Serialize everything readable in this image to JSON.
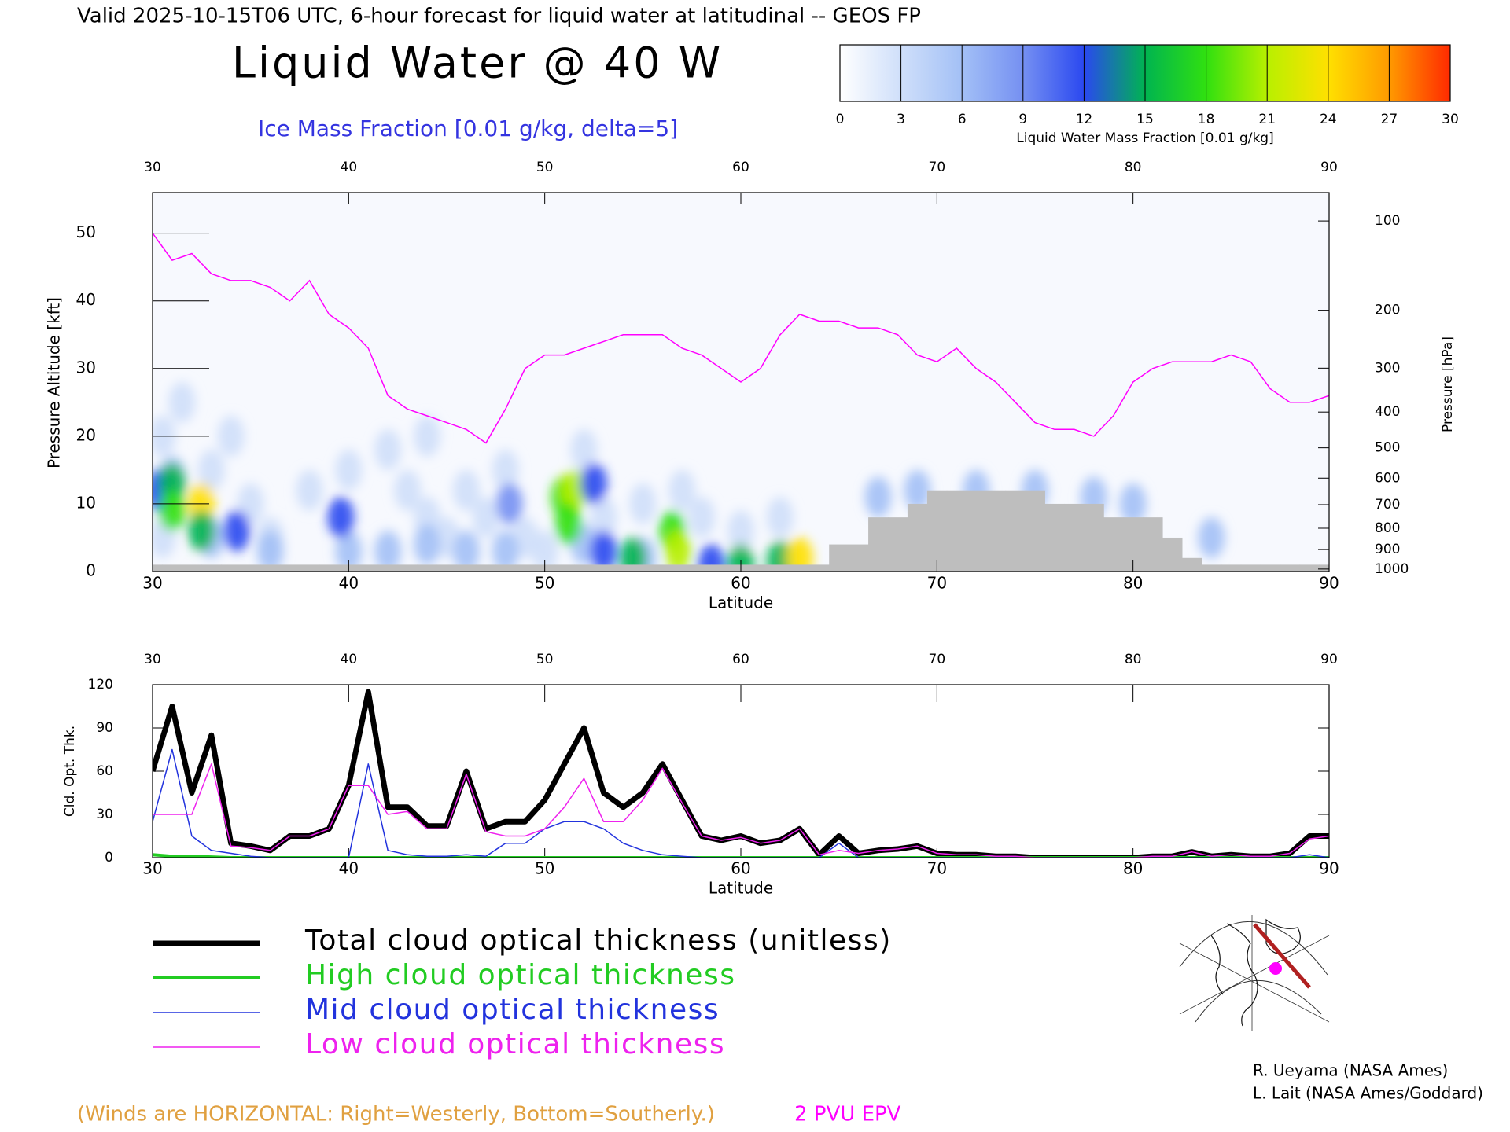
{
  "chart_data": [
    {
      "type": "section",
      "suptitle": "Valid 2025-10-15T06 UTC, 6-hour forecast for liquid water at latitudinal -- GEOS FP",
      "title": "Liquid Water @ 40 W",
      "subtitle": "Ice Mass Fraction [0.01 g/kg, delta=5]",
      "xlabel": "Latitude",
      "ylabel": "Pressure Altitude [kft]",
      "y2label": "Pressure [hPa]",
      "xlim": [
        30,
        90
      ],
      "xticks": [
        30,
        40,
        50,
        60,
        70,
        80,
        90
      ],
      "ylim": [
        0,
        56
      ],
      "yticks": [
        0,
        10,
        20,
        30,
        40,
        50
      ],
      "y2scale": "pressure-altitude",
      "y2ticks": [
        100,
        200,
        300,
        400,
        500,
        600,
        700,
        800,
        900,
        1000
      ],
      "colorbar": {
        "label": "Liquid Water Mass Fraction [0.01 g/kg]",
        "ticks": [
          0,
          3,
          6,
          9,
          12,
          15,
          18,
          21,
          24,
          27,
          30
        ],
        "colors": [
          "#ffffff",
          "#cfdffa",
          "#a3c0f6",
          "#7590f2",
          "#2a48f0",
          "#00b450",
          "#30e010",
          "#b8f000",
          "#ffe000",
          "#ff9a00",
          "#ff2a00"
        ]
      },
      "field": {
        "x": [
          30.5,
          31.5,
          30.5,
          33,
          34,
          35,
          38,
          40,
          42,
          43,
          44,
          45,
          46,
          47,
          48,
          49,
          50,
          52,
          53,
          55,
          57,
          58,
          60,
          62,
          44,
          36,
          31,
          33,
          36,
          40,
          42,
          44,
          46,
          48,
          52,
          55,
          67,
          69,
          72,
          75,
          78,
          80,
          84,
          30.3,
          31,
          31,
          32.5,
          32.5,
          34.3,
          39.6,
          48.2,
          51,
          51.5,
          52.5,
          51.2,
          53,
          54.5,
          56.5,
          56.8,
          58.5,
          60,
          62,
          63
        ],
        "y": [
          20,
          25,
          5,
          15,
          20,
          10,
          12,
          15,
          18,
          12,
          8,
          5,
          12,
          8,
          15,
          5,
          3,
          18,
          8,
          10,
          12,
          8,
          6,
          8,
          20,
          5,
          14,
          5,
          3,
          3,
          3,
          4,
          3,
          3,
          4,
          2,
          11,
          12,
          12,
          12,
          11,
          10,
          5,
          12,
          13,
          9,
          10,
          6,
          6,
          8,
          10,
          11,
          12,
          13,
          7,
          3,
          2,
          6,
          3,
          1,
          1,
          1.5,
          2
        ],
        "values": [
          3,
          3,
          3,
          3,
          3,
          3,
          3,
          3,
          3,
          3,
          3,
          3,
          3,
          3,
          3,
          3,
          3,
          3,
          3,
          3,
          3,
          3,
          3,
          3,
          3,
          3,
          6,
          6,
          6,
          6,
          6,
          6,
          6,
          6,
          6,
          6,
          6,
          6,
          6,
          6,
          6,
          6,
          6,
          12,
          15,
          18,
          24,
          15,
          12,
          12,
          9,
          18,
          21,
          12,
          18,
          12,
          15,
          18,
          21,
          12,
          15,
          15,
          24
        ]
      },
      "series": [
        {
          "name": "2 PVU EPV",
          "color": "#ff00ff",
          "x": [
            30,
            31,
            32,
            33,
            34,
            35,
            36,
            37,
            38,
            39,
            40,
            41,
            42,
            43,
            44,
            45,
            46,
            47,
            48,
            49,
            50,
            51,
            52,
            53,
            54,
            55,
            56,
            57,
            58,
            59,
            60,
            61,
            62,
            63,
            64,
            65,
            66,
            67,
            68,
            69,
            70,
            71,
            72,
            73,
            74,
            75,
            76,
            77,
            78,
            79,
            80,
            81,
            82,
            83,
            84,
            85,
            86,
            87,
            88,
            89,
            90
          ],
          "values": [
            50,
            46,
            47,
            44,
            43,
            43,
            42,
            40,
            43,
            38,
            36,
            33,
            26,
            24,
            23,
            22,
            21,
            19,
            24,
            30,
            32,
            32,
            33,
            34,
            35,
            35,
            35,
            33,
            32,
            30,
            28,
            30,
            35,
            38,
            37,
            37,
            36,
            36,
            35,
            32,
            31,
            33,
            30,
            28,
            25,
            22,
            21,
            21,
            20,
            23,
            28,
            30,
            31,
            31,
            31,
            32,
            31,
            27,
            25,
            25,
            26
          ]
        },
        {
          "color": "#bebebe",
          "x": [
            30,
            31,
            32,
            33,
            34,
            35,
            36,
            37,
            38,
            39,
            40,
            41,
            42,
            43,
            44,
            45,
            46,
            47,
            48,
            49,
            50,
            51,
            52,
            53,
            54,
            55,
            56,
            57,
            58,
            59,
            60,
            61,
            62,
            63,
            64,
            65,
            66,
            67,
            68,
            69,
            70,
            71,
            72,
            73,
            74,
            75,
            76,
            77,
            78,
            79,
            80,
            81,
            82,
            83,
            84,
            85,
            86,
            87,
            88,
            89,
            90
          ],
          "values": [
            1,
            1,
            1,
            1,
            1,
            1,
            1,
            1,
            1,
            1,
            1,
            1,
            1,
            1,
            1,
            1,
            1,
            1,
            1,
            1,
            1,
            1,
            1,
            1,
            1,
            1,
            1,
            1,
            1,
            1,
            1,
            1,
            1,
            1,
            1,
            4,
            4,
            8,
            8,
            10,
            12,
            12,
            12,
            12,
            12,
            12,
            10,
            10,
            10,
            8,
            8,
            8,
            5,
            2,
            1,
            1,
            1,
            1,
            1,
            1,
            1
          ]
        }
      ],
      "annotation": "(Winds are HORIZONTAL: Right=Westerly, Bottom=Southerly.)"
    },
    {
      "type": "line",
      "xlabel": "Latitude",
      "ylabel": "Cld. Opt. Thk.",
      "xlim": [
        30,
        90
      ],
      "xticks": [
        30,
        40,
        50,
        60,
        70,
        80,
        90
      ],
      "ylim": [
        0,
        120
      ],
      "yticks": [
        0,
        30,
        60,
        90,
        120
      ],
      "x": [
        30,
        31,
        32,
        33,
        34,
        35,
        36,
        37,
        38,
        39,
        40,
        41,
        42,
        43,
        44,
        45,
        46,
        47,
        48,
        49,
        50,
        51,
        52,
        53,
        54,
        55,
        56,
        57,
        58,
        59,
        60,
        61,
        62,
        63,
        64,
        65,
        66,
        67,
        68,
        69,
        70,
        71,
        72,
        73,
        74,
        75,
        76,
        77,
        78,
        79,
        80,
        81,
        82,
        83,
        84,
        85,
        86,
        87,
        88,
        89,
        90
      ],
      "series": [
        {
          "name": "Total cloud optical thickness (unitless)",
          "color": "#000000",
          "linewidth": 7,
          "values": [
            60,
            105,
            45,
            85,
            10,
            8,
            5,
            15,
            15,
            20,
            50,
            115,
            35,
            35,
            22,
            22,
            60,
            20,
            25,
            25,
            40,
            65,
            90,
            45,
            35,
            45,
            65,
            40,
            15,
            12,
            15,
            10,
            12,
            20,
            2,
            15,
            3,
            5,
            6,
            8,
            3,
            2,
            2,
            1,
            1,
            0,
            0,
            0,
            0,
            0,
            0,
            1,
            1,
            4,
            1,
            2,
            1,
            1,
            3,
            15,
            15
          ]
        },
        {
          "name": "High cloud optical thickness",
          "color": "#22cc22",
          "linewidth": 4,
          "values": [
            2,
            1,
            1,
            0.5,
            0,
            0,
            0,
            0,
            0,
            0,
            0,
            0,
            0,
            0,
            0,
            0,
            0,
            0,
            0,
            0,
            0,
            0,
            0,
            0,
            0,
            0,
            0,
            0,
            0,
            0,
            0,
            0,
            0,
            0,
            0,
            0,
            0,
            0,
            0,
            0,
            0,
            0,
            0,
            0,
            0,
            0,
            0,
            0,
            0,
            0,
            0,
            0,
            0,
            0,
            0,
            0,
            0,
            0,
            0,
            0,
            0
          ]
        },
        {
          "name": "Mid cloud optical thickness",
          "color": "#2233dd",
          "linewidth": 1.5,
          "values": [
            25,
            75,
            15,
            5,
            3,
            1,
            0,
            0,
            0,
            0,
            0,
            65,
            5,
            2,
            1,
            1,
            2,
            1,
            10,
            10,
            20,
            25,
            25,
            20,
            10,
            5,
            2,
            1,
            0,
            0,
            0,
            0,
            0,
            0,
            0,
            10,
            0,
            0,
            0,
            0,
            0,
            0,
            0,
            0,
            0,
            0,
            0,
            0,
            0,
            0,
            0,
            0,
            0,
            0,
            0,
            0,
            0,
            0,
            0,
            2,
            0
          ]
        },
        {
          "name": "Low cloud optical thickness",
          "color": "#ee22ee",
          "linewidth": 1.5,
          "values": [
            30,
            30,
            30,
            65,
            8,
            7,
            5,
            15,
            15,
            20,
            50,
            50,
            30,
            32,
            20,
            20,
            58,
            18,
            15,
            15,
            20,
            35,
            55,
            25,
            25,
            40,
            62,
            38,
            15,
            12,
            14,
            10,
            12,
            20,
            2,
            5,
            3,
            5,
            6,
            8,
            3,
            2,
            2,
            1,
            1,
            0,
            0,
            0,
            0,
            0,
            0,
            1,
            1,
            4,
            1,
            2,
            1,
            1,
            3,
            13,
            15
          ]
        }
      ]
    }
  ],
  "credits": [
    "R. Ueyama (NASA Ames)",
    "L. Lait (NASA Ames/Goddard)"
  ]
}
